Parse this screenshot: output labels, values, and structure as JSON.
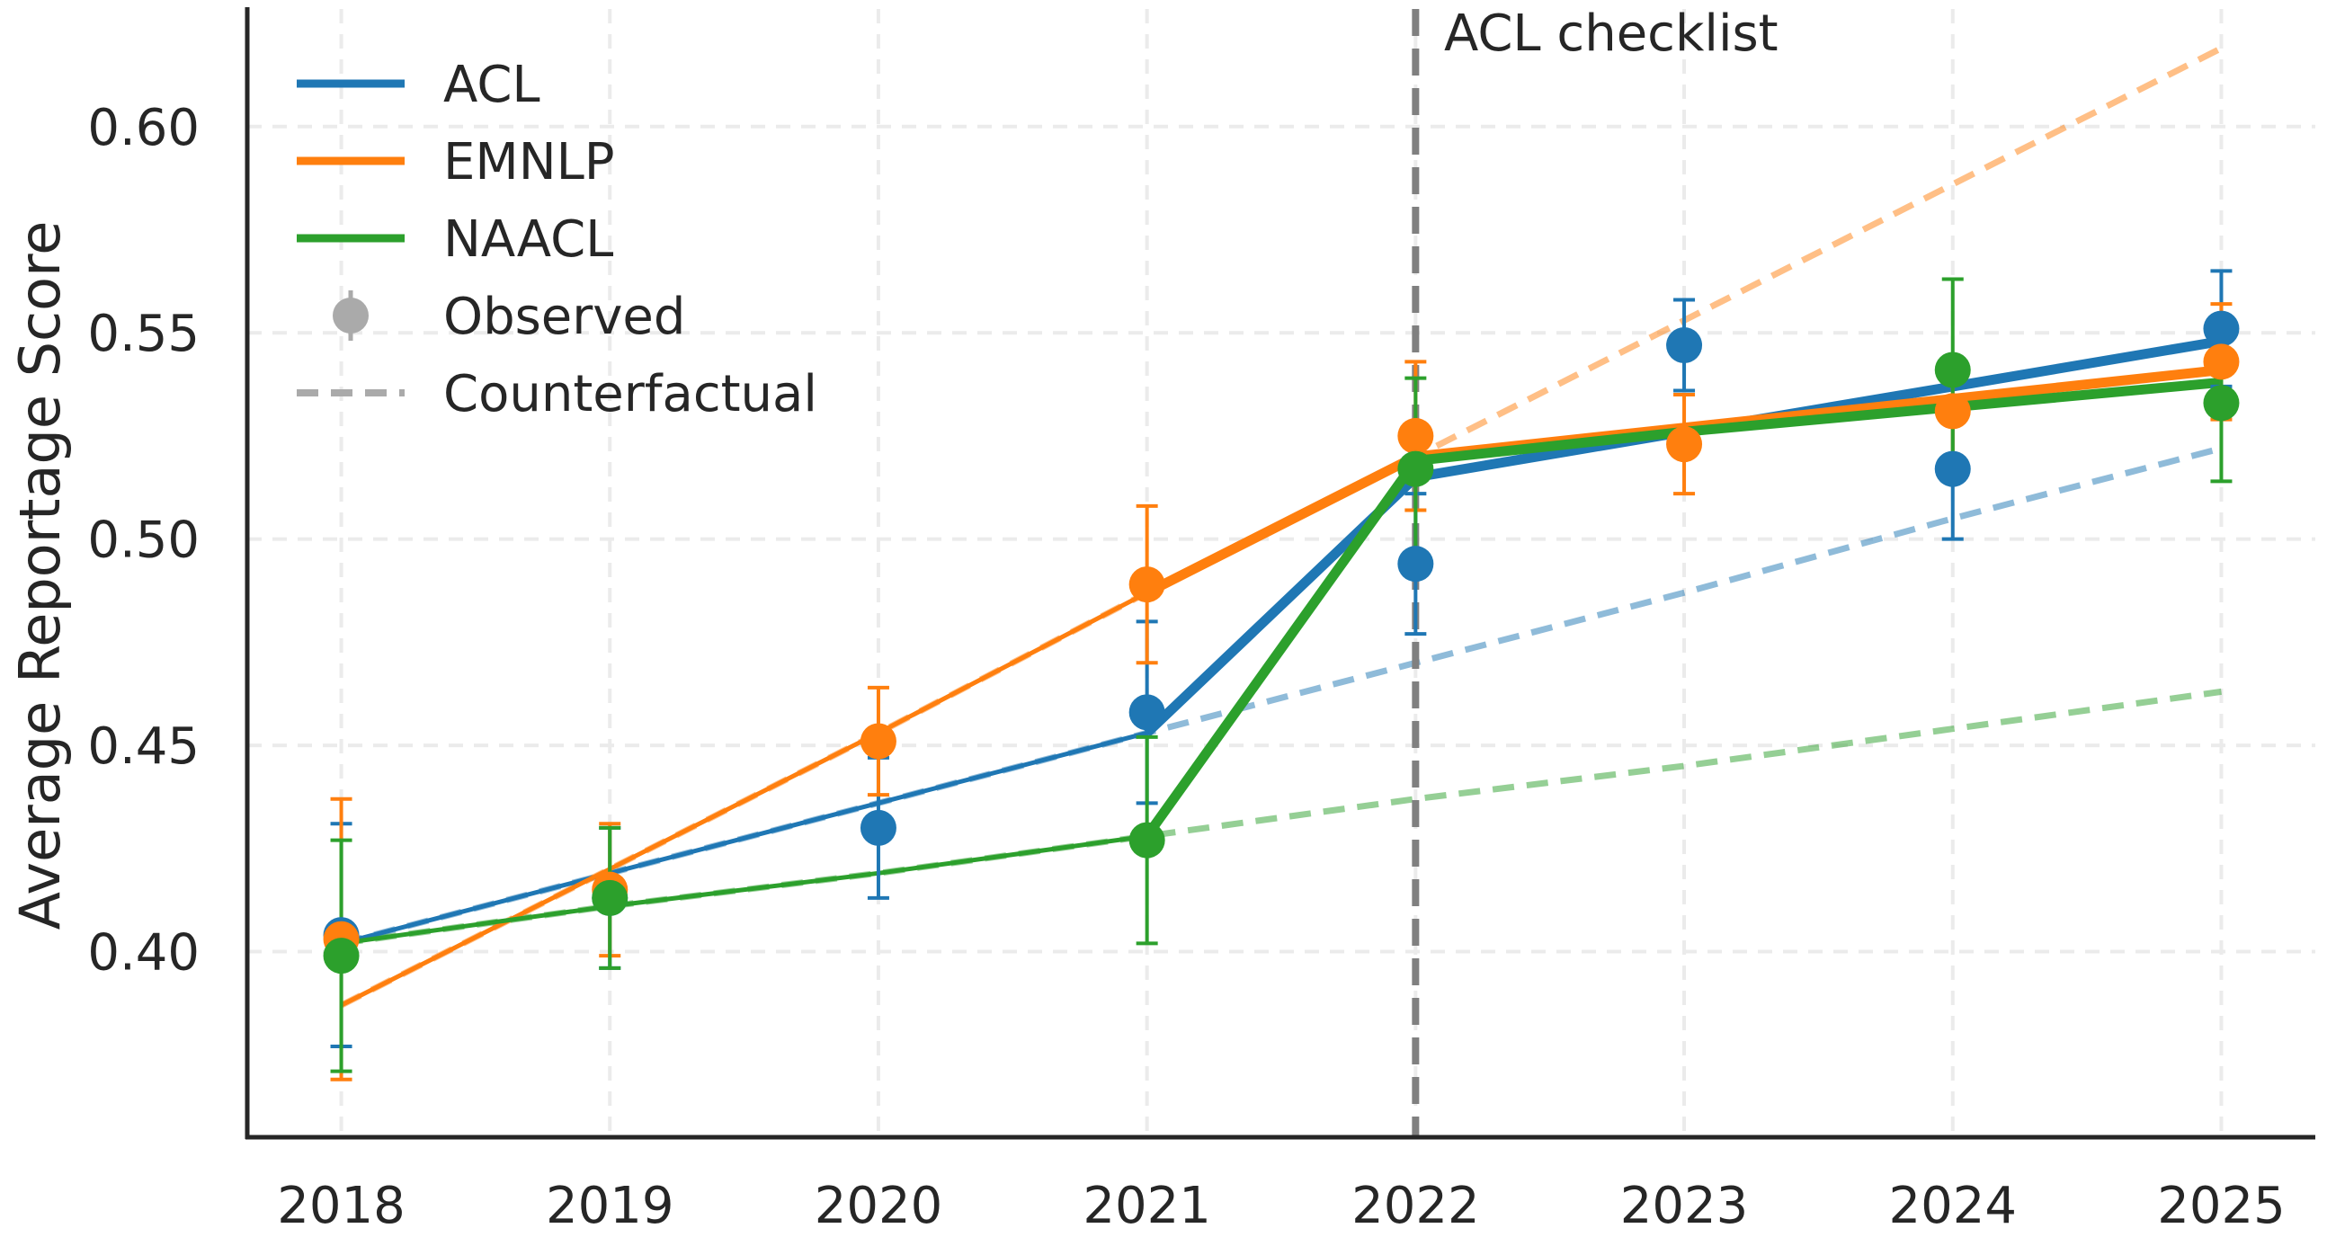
{
  "chart_data": {
    "type": "line",
    "title": "",
    "xlabel": "",
    "ylabel": "Average Reportage Score",
    "x": [
      2018,
      2019,
      2020,
      2021,
      2022,
      2023,
      2024,
      2025
    ],
    "xlim": [
      2017.65,
      2025.35
    ],
    "ylim": [
      0.355,
      0.6285
    ],
    "yticks": [
      0.4,
      0.45,
      0.5,
      0.55,
      0.6
    ],
    "ytick_labels": [
      "0.40",
      "0.45",
      "0.50",
      "0.55",
      "0.60"
    ],
    "grid": true,
    "legend_position": "top-left",
    "intervention": {
      "x": 2022,
      "label": "ACL checklist",
      "color": "#808080"
    },
    "series": [
      {
        "name": "ACL",
        "color": "#1f77b4",
        "observed": [
          0.404,
          0.413,
          0.43,
          0.458,
          0.494,
          0.547,
          0.517,
          0.551
        ],
        "error": [
          0.027,
          0.017,
          0.017,
          0.022,
          0.017,
          0.011,
          0.017,
          0.014
        ],
        "fit": [
          0.402,
          0.419,
          0.436,
          0.453,
          0.515,
          0.526,
          0.537,
          0.548
        ],
        "counterfactual": [
          0.402,
          0.419,
          0.436,
          0.453,
          0.47,
          0.487,
          0.505,
          0.522
        ]
      },
      {
        "name": "EMNLP",
        "color": "#ff7f0e",
        "observed": [
          0.403,
          0.415,
          0.451,
          0.489,
          0.525,
          0.523,
          0.531,
          0.543
        ],
        "error": [
          0.034,
          0.016,
          0.013,
          0.019,
          0.018,
          0.012,
          0.012,
          0.014
        ],
        "fit": [
          0.387,
          0.42,
          0.453,
          0.487,
          0.52,
          0.527,
          0.534,
          0.541
        ],
        "counterfactual": [
          0.387,
          0.42,
          0.453,
          0.487,
          0.52,
          0.553,
          0.586,
          0.619
        ]
      },
      {
        "name": "NAACL",
        "color": "#2ca02c",
        "observed": [
          0.399,
          0.413,
          null,
          0.427,
          0.517,
          null,
          0.541,
          0.533
        ],
        "error": [
          0.028,
          0.017,
          null,
          0.025,
          0.022,
          null,
          0.022,
          0.019
        ],
        "fit": [
          0.402,
          0.411,
          0.419,
          0.428,
          0.519,
          0.526,
          0.532,
          0.538
        ],
        "counterfactual": [
          0.402,
          0.411,
          0.419,
          0.428,
          0.437,
          0.445,
          0.454,
          0.463
        ]
      }
    ],
    "legend": [
      {
        "label": "ACL",
        "kind": "line",
        "color": "#1f77b4"
      },
      {
        "label": "EMNLP",
        "kind": "line",
        "color": "#ff7f0e"
      },
      {
        "label": "NAACL",
        "kind": "line",
        "color": "#2ca02c"
      },
      {
        "label": "Observed",
        "kind": "marker",
        "color": "#aaaaaa"
      },
      {
        "label": "Counterfactual",
        "kind": "dashed",
        "color": "#aaaaaa"
      }
    ]
  }
}
